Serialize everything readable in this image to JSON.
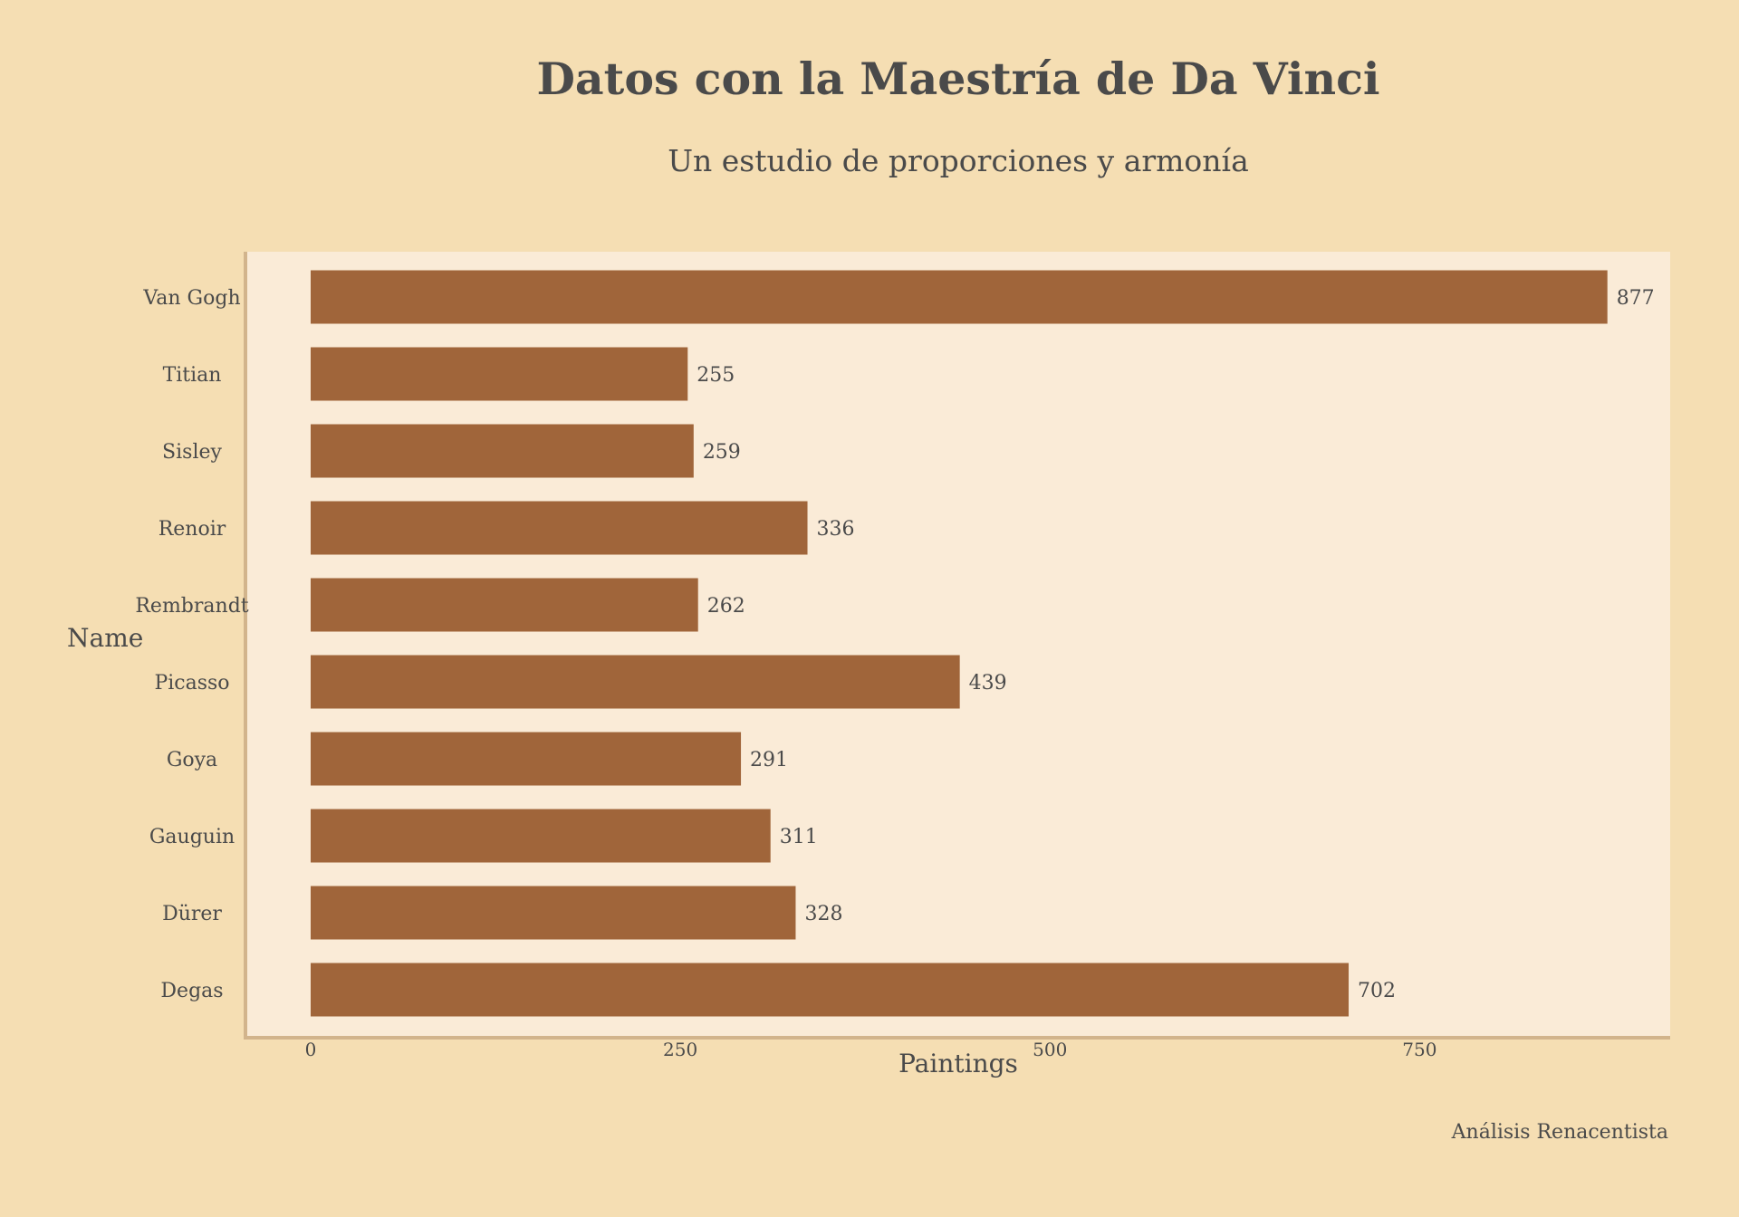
{
  "chart_data": {
    "type": "bar",
    "orientation": "horizontal",
    "title": "Datos con la Maestría de Da Vinci",
    "subtitle": "Un estudio de proporciones y armonía",
    "xlabel": "Paintings",
    "ylabel": "Name",
    "categories": [
      "Van Gogh",
      "Titian",
      "Sisley",
      "Renoir",
      "Rembrandt",
      "Picasso",
      "Goya",
      "Gauguin",
      "Dürer",
      "Degas"
    ],
    "values": [
      877,
      255,
      259,
      336,
      262,
      439,
      291,
      311,
      328,
      702
    ],
    "x_ticks": [
      "0",
      "250",
      "500",
      "750"
    ],
    "xlim": [
      0,
      921
    ],
    "grid": false,
    "annotation": "Análisis Renacentista"
  },
  "colors": {
    "background": "#F5DEB3",
    "plot_background": "#FAEBD7",
    "bar": "#A0653A",
    "axis_line": "#D2B48C",
    "text": "#4A4A4A"
  }
}
